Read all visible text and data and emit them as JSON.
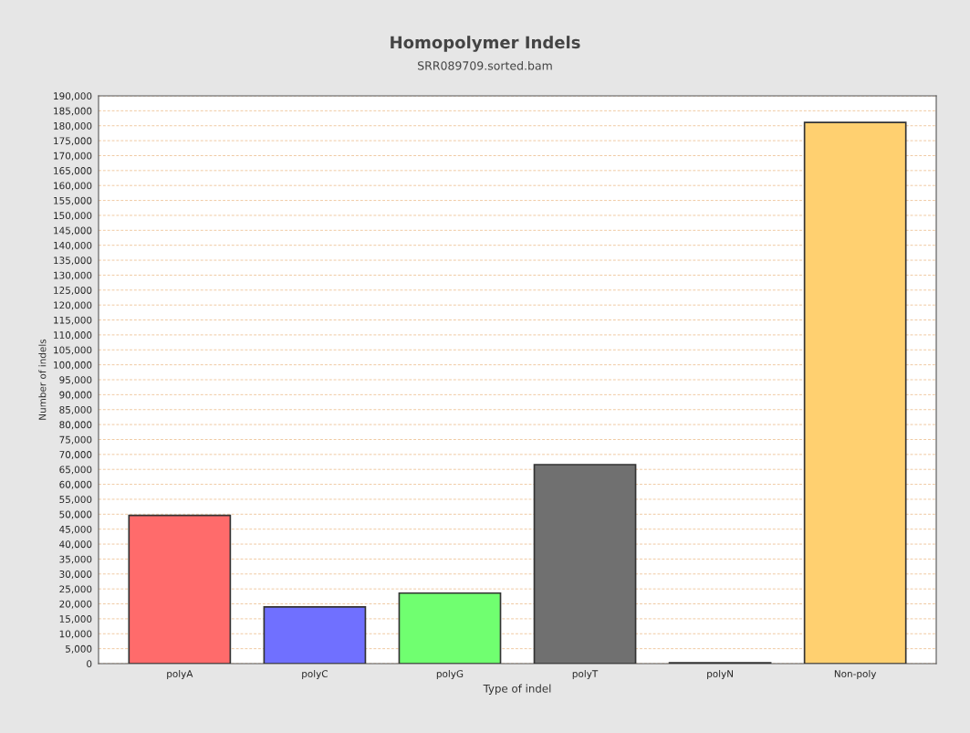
{
  "chart_data": {
    "type": "bar",
    "title": "Homopolymer Indels",
    "subtitle": "SRR089709.sorted.bam",
    "xlabel": "Type of indel",
    "ylabel": "Number of indels",
    "categories": [
      "polyA",
      "polyC",
      "polyG",
      "polyT",
      "polyN",
      "Non-poly"
    ],
    "values": [
      49600,
      19000,
      23600,
      66600,
      300,
      181100
    ],
    "colors": [
      "#ff6b6b",
      "#7070ff",
      "#70ff70",
      "#707070",
      "#6060a0",
      "#ffd070"
    ],
    "ylim": [
      0,
      190000
    ],
    "yticks": [
      {
        "value": 0,
        "label": "0"
      },
      {
        "value": 5000,
        "label": "5,000"
      },
      {
        "value": 10000,
        "label": "10,000"
      },
      {
        "value": 15000,
        "label": "15,000"
      },
      {
        "value": 20000,
        "label": "20,000"
      },
      {
        "value": 25000,
        "label": "25,000"
      },
      {
        "value": 30000,
        "label": "30,000"
      },
      {
        "value": 35000,
        "label": "35,000"
      },
      {
        "value": 40000,
        "label": "40,000"
      },
      {
        "value": 45000,
        "label": "45,000"
      },
      {
        "value": 50000,
        "label": "50,000"
      },
      {
        "value": 55000,
        "label": "55,000"
      },
      {
        "value": 60000,
        "label": "60,000"
      },
      {
        "value": 65000,
        "label": "65,000"
      },
      {
        "value": 70000,
        "label": "70,000"
      },
      {
        "value": 75000,
        "label": "75,000"
      },
      {
        "value": 80000,
        "label": "80,000"
      },
      {
        "value": 85000,
        "label": "85,000"
      },
      {
        "value": 90000,
        "label": "90,000"
      },
      {
        "value": 95000,
        "label": "95,000"
      },
      {
        "value": 100000,
        "label": "100,000"
      },
      {
        "value": 105000,
        "label": "105,000"
      },
      {
        "value": 110000,
        "label": "110,000"
      },
      {
        "value": 115000,
        "label": "115,000"
      },
      {
        "value": 120000,
        "label": "120,000"
      },
      {
        "value": 125000,
        "label": "125,000"
      },
      {
        "value": 130000,
        "label": "130,000"
      },
      {
        "value": 135000,
        "label": "135,000"
      },
      {
        "value": 140000,
        "label": "140,000"
      },
      {
        "value": 145000,
        "label": "145,000"
      },
      {
        "value": 150000,
        "label": "150,000"
      },
      {
        "value": 155000,
        "label": "155,000"
      },
      {
        "value": 160000,
        "label": "160,000"
      },
      {
        "value": 165000,
        "label": "165,000"
      },
      {
        "value": 170000,
        "label": "170,000"
      },
      {
        "value": 175000,
        "label": "175,000"
      },
      {
        "value": 180000,
        "label": "180,000"
      },
      {
        "value": 185000,
        "label": "185,000"
      },
      {
        "value": 190000,
        "label": "190,000"
      }
    ],
    "grid": "y"
  }
}
